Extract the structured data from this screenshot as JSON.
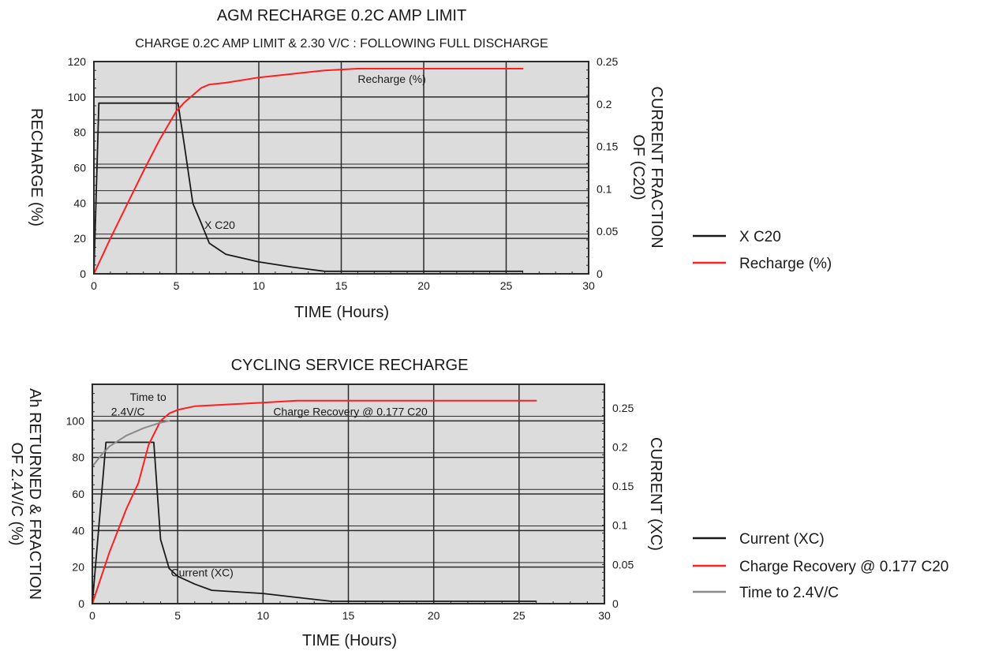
{
  "colors": {
    "plot_bg": "#dcdcdc",
    "grid": "#2a2a2a",
    "current": "#1a1a1a",
    "recharge": "#ff1f1f",
    "time_to": "#8a8a8a",
    "text": "#1a1a1a"
  },
  "chart_data": [
    {
      "type": "line",
      "title": "AGM RECHARGE 0.2C AMP LIMIT",
      "subtitle": "CHARGE 0.2C AMP LIMIT & 2.30 V/C : FOLLOWING FULL DISCHARGE",
      "xlabel": "TIME (Hours)",
      "ylabel": "RECHARGE (%)",
      "y2label_lines": [
        "CURRENT FRACTION",
        "OF (C20)"
      ],
      "xlim": [
        0,
        30
      ],
      "ylim": [
        0,
        120
      ],
      "y2lim": [
        0,
        0.25
      ],
      "xticks": [
        "0",
        "5",
        "10",
        "15",
        "20",
        "25",
        "30"
      ],
      "yticks": [
        "0",
        "20",
        "40",
        "60",
        "80",
        "100",
        "120"
      ],
      "y2ticks": [
        "0",
        "0.05",
        "0.1",
        "0.15",
        "0.2",
        "0.25"
      ],
      "grid": true,
      "legend_position": "right",
      "legend": [
        "X C20",
        "Recharge (%)"
      ],
      "annotations": [
        {
          "text": "Recharge (%)",
          "x": 16,
          "y": 108
        },
        {
          "text": "X C20",
          "x": 6.7,
          "y": 0.053
        }
      ],
      "series": [
        {
          "name": "X C20",
          "axis": "y2",
          "color_key": "current",
          "x": [
            0,
            0.3,
            5.1,
            5.5,
            6.0,
            6.5,
            7.0,
            8.0,
            10.0,
            12.0,
            14.0,
            26.0
          ],
          "y": [
            0,
            0.201,
            0.201,
            0.15,
            0.083,
            0.06,
            0.036,
            0.023,
            0.014,
            0.008,
            0.003,
            0.003
          ]
        },
        {
          "name": "Recharge (%)",
          "axis": "y",
          "color_key": "recharge",
          "x": [
            0,
            1,
            2,
            3,
            4,
            5,
            5.5,
            6,
            6.5,
            7,
            8,
            10,
            12,
            14,
            16,
            20,
            26
          ],
          "y": [
            0,
            20,
            39,
            58,
            76,
            92,
            97,
            101,
            105,
            107,
            108,
            111,
            113,
            115,
            116,
            116,
            116
          ]
        }
      ]
    },
    {
      "type": "line",
      "title": "CYCLING SERVICE RECHARGE",
      "xlabel": "TIME (Hours)",
      "ylabel_lines": [
        "Ah RETURNED & FRACTION",
        "OF 2.4V/C (%)"
      ],
      "y2label": "CURRENT (XC)",
      "xlim": [
        0,
        30
      ],
      "ylim": [
        0,
        120
      ],
      "y2lim": [
        0,
        0.28
      ],
      "xticks": [
        "0",
        "5",
        "10",
        "15",
        "20",
        "25",
        "30"
      ],
      "yticks": [
        "0",
        "20",
        "40",
        "60",
        "80",
        "100"
      ],
      "y2ticks": [
        "0",
        "0.05",
        "0.1",
        "0.15",
        "0.2",
        "0.25"
      ],
      "grid": true,
      "legend_position": "right",
      "legend": [
        "Current (XC)",
        "Charge Recovery @ 0.177 C20",
        "Time to 2.4V/C"
      ],
      "annotations": [
        {
          "text": "Time to",
          "x": 2.2,
          "y": 111
        },
        {
          "text": "2.4V/C",
          "x": 1.1,
          "y": 103
        },
        {
          "text": "Charge Recovery @ 0.177 C20",
          "x": 10.6,
          "y": 103
        },
        {
          "text": "Current (XC)",
          "x": 4.6,
          "y": 0.035
        }
      ],
      "series": [
        {
          "name": "Current (XC)",
          "axis": "y2",
          "color_key": "current",
          "x": [
            0,
            0.8,
            3.6,
            4.0,
            4.5,
            5.0,
            6.0,
            7.0,
            10.0,
            12.0,
            14.0,
            26.0
          ],
          "y": [
            0,
            0.206,
            0.206,
            0.082,
            0.045,
            0.035,
            0.025,
            0.017,
            0.013,
            0.008,
            0.003,
            0.003
          ]
        },
        {
          "name": "Charge Recovery @ 0.177 C20",
          "axis": "y",
          "color_key": "recharge",
          "x": [
            0,
            1,
            2,
            2.7,
            3.3,
            4.0,
            4.5,
            5.0,
            6.0,
            8.0,
            10.0,
            12.0,
            15.0,
            20.0,
            26.0
          ],
          "y": [
            0,
            28,
            52,
            66,
            87,
            100,
            104,
            106,
            108,
            109,
            110,
            111,
            111,
            111,
            111
          ]
        },
        {
          "name": "Time to 2.4V/C",
          "axis": "y",
          "color_key": "time_to",
          "x": [
            0,
            0.5,
            1.0,
            1.5,
            2.0,
            3.0,
            4.0,
            4.5
          ],
          "y": [
            75,
            81,
            86,
            89,
            92,
            96,
            99,
            100
          ]
        }
      ]
    }
  ]
}
